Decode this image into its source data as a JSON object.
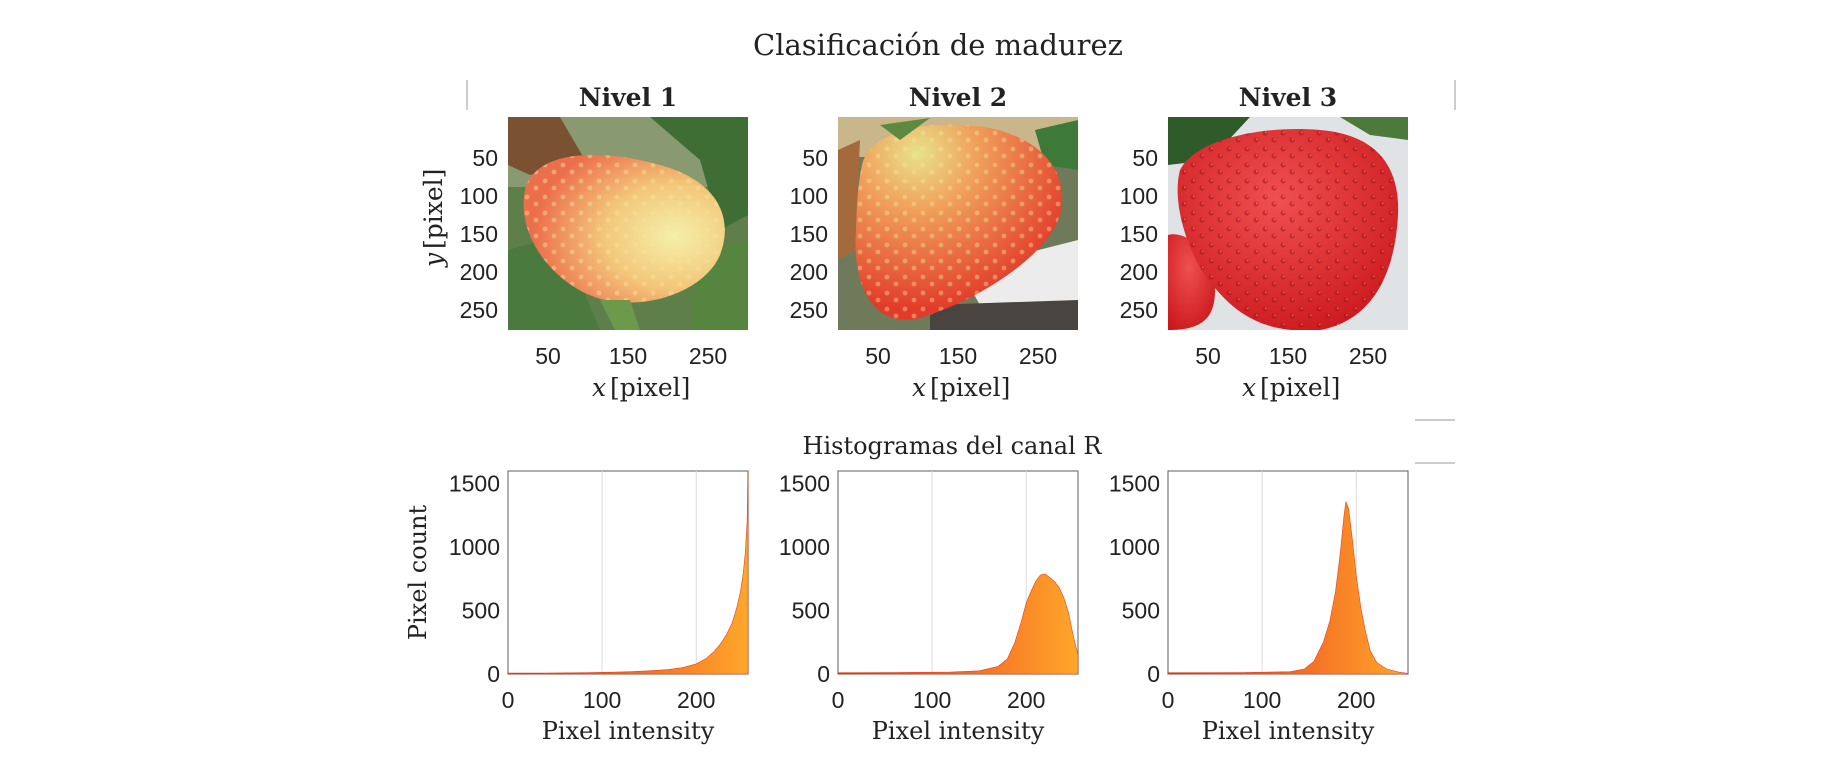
{
  "figure": {
    "title": "Clasificación de madurez",
    "subtitle": "Histogramas del canal R"
  },
  "images": {
    "panels": [
      {
        "title": "Nivel 1",
        "kind": "level1"
      },
      {
        "title": "Nivel 2",
        "kind": "level2"
      },
      {
        "title": "Nivel 3",
        "kind": "level3"
      }
    ],
    "x_label": "x",
    "x_unit": "[pixel]",
    "y_label": "y",
    "y_unit": "[pixel]",
    "x_ticks": [
      "50",
      "150",
      "250"
    ],
    "y_ticks": [
      "50",
      "100",
      "150",
      "200",
      "250"
    ],
    "colors": {
      "level1_fruit": "#f2a06a",
      "level2_fruit": "#e8553a",
      "level3_fruit": "#e32f2f",
      "leaf": "#4f7a3c"
    }
  },
  "chart_data": [
    {
      "type": "histogram",
      "title": "",
      "xlabel": "Pixel intensity",
      "ylabel": "Pixel count",
      "xlim": [
        0,
        255
      ],
      "ylim": [
        0,
        1600
      ],
      "x_ticks": [
        0,
        100,
        200
      ],
      "y_ticks": [
        0,
        500,
        1000,
        1500
      ],
      "grid": true,
      "gradient": [
        "#e8251f",
        "#ffa72a"
      ],
      "bins": [
        [
          0,
          8
        ],
        [
          40,
          8
        ],
        [
          80,
          10
        ],
        [
          110,
          14
        ],
        [
          130,
          18
        ],
        [
          150,
          25
        ],
        [
          170,
          35
        ],
        [
          185,
          50
        ],
        [
          200,
          80
        ],
        [
          210,
          120
        ],
        [
          218,
          170
        ],
        [
          225,
          230
        ],
        [
          232,
          310
        ],
        [
          238,
          400
        ],
        [
          243,
          520
        ],
        [
          247,
          650
        ],
        [
          250,
          800
        ],
        [
          252,
          950
        ],
        [
          254,
          1200
        ],
        [
          255,
          1600
        ]
      ]
    },
    {
      "type": "histogram",
      "title": "",
      "xlabel": "Pixel intensity",
      "ylabel": "",
      "xlim": [
        0,
        255
      ],
      "ylim": [
        0,
        1600
      ],
      "x_ticks": [
        0,
        100,
        200
      ],
      "y_ticks": [
        0,
        500,
        1000,
        1500
      ],
      "grid": true,
      "gradient": [
        "#e8251f",
        "#ffa72a"
      ],
      "bins": [
        [
          0,
          10
        ],
        [
          60,
          12
        ],
        [
          120,
          15
        ],
        [
          150,
          25
        ],
        [
          170,
          60
        ],
        [
          180,
          120
        ],
        [
          188,
          250
        ],
        [
          195,
          420
        ],
        [
          200,
          560
        ],
        [
          205,
          650
        ],
        [
          210,
          730
        ],
        [
          215,
          780
        ],
        [
          220,
          790
        ],
        [
          225,
          760
        ],
        [
          230,
          730
        ],
        [
          235,
          680
        ],
        [
          240,
          600
        ],
        [
          245,
          480
        ],
        [
          250,
          300
        ],
        [
          255,
          150
        ]
      ]
    },
    {
      "type": "histogram",
      "title": "",
      "xlabel": "Pixel intensity",
      "ylabel": "",
      "xlim": [
        0,
        255
      ],
      "ylim": [
        0,
        1600
      ],
      "x_ticks": [
        0,
        100,
        200
      ],
      "y_ticks": [
        0,
        500,
        1000,
        1500
      ],
      "grid": true,
      "gradient": [
        "#e8251f",
        "#ffa72a"
      ],
      "bins": [
        [
          0,
          10
        ],
        [
          80,
          12
        ],
        [
          130,
          18
        ],
        [
          145,
          40
        ],
        [
          155,
          100
        ],
        [
          165,
          250
        ],
        [
          172,
          420
        ],
        [
          178,
          650
        ],
        [
          183,
          950
        ],
        [
          187,
          1250
        ],
        [
          189,
          1360
        ],
        [
          192,
          1300
        ],
        [
          196,
          1050
        ],
        [
          200,
          780
        ],
        [
          205,
          520
        ],
        [
          210,
          330
        ],
        [
          215,
          180
        ],
        [
          222,
          90
        ],
        [
          232,
          40
        ],
        [
          245,
          15
        ],
        [
          255,
          5
        ]
      ]
    }
  ]
}
